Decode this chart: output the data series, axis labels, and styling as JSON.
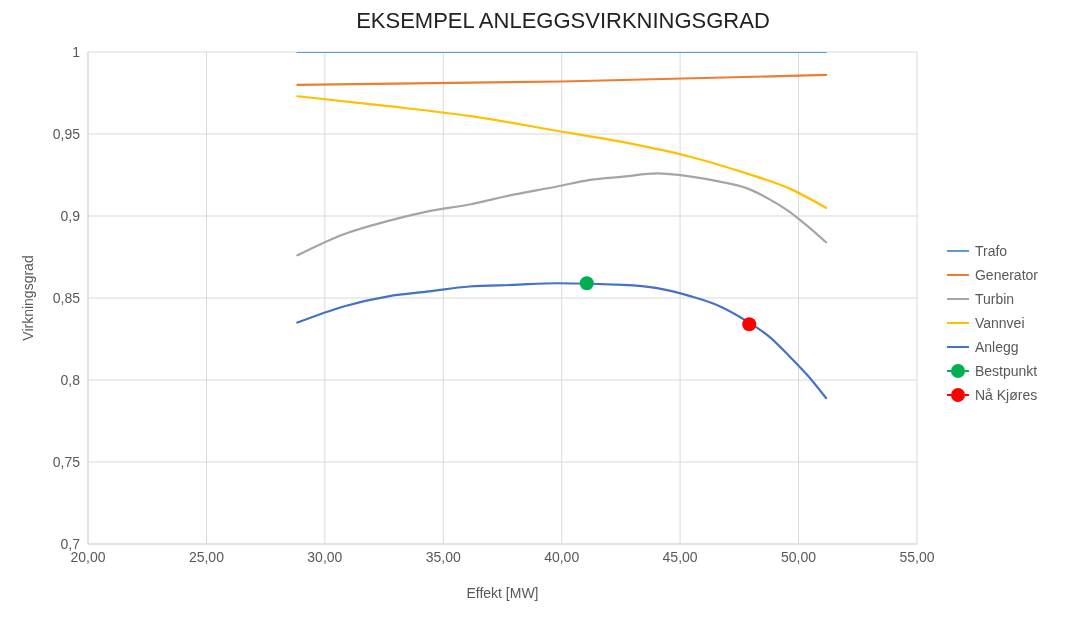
{
  "chart_data": {
    "type": "line",
    "title": "EKSEMPEL ANLEGGSVIRKNINGSGRAD",
    "xlabel": "Effekt [MW]",
    "ylabel": "Virkningsgrad",
    "xlim": [
      20,
      55
    ],
    "xticks": [
      {
        "value": 20,
        "label": "20,00"
      },
      {
        "value": 25,
        "label": "25,00"
      },
      {
        "value": 30,
        "label": "30,00"
      },
      {
        "value": 35,
        "label": "35,00"
      },
      {
        "value": 40,
        "label": "40,00"
      },
      {
        "value": 45,
        "label": "45,00"
      },
      {
        "value": 50,
        "label": "50,00"
      },
      {
        "value": 55,
        "label": "55,00"
      }
    ],
    "ylim": [
      0.7,
      1
    ],
    "yticks": [
      {
        "value": 0.7,
        "label": "0,7"
      },
      {
        "value": 0.75,
        "label": "0,75"
      },
      {
        "value": 0.8,
        "label": "0,8"
      },
      {
        "value": 0.85,
        "label": "0,85"
      },
      {
        "value": 0.9,
        "label": "0,9"
      },
      {
        "value": 0.95,
        "label": "0,95"
      },
      {
        "value": 1,
        "label": "1"
      }
    ],
    "grid": true,
    "legend": "right",
    "marker": "none",
    "series": [
      {
        "name": "Trafo",
        "color": "#5b9bd5",
        "x": [
          28.84,
          51.16
        ],
        "values": [
          1,
          1
        ]
      },
      {
        "name": "Generator",
        "color": "#ed7d31",
        "x": [
          28.84,
          40,
          51.16
        ],
        "values": [
          0.98,
          0.982,
          0.986
        ]
      },
      {
        "name": "Turbin",
        "color": "#a5a5a5",
        "x": [
          28.84,
          30.83,
          32.68,
          34.4,
          36.1,
          37.96,
          39.8,
          41.2,
          42.6,
          44.03,
          45.46,
          46.67,
          47.8,
          48.8,
          49.58,
          50.37,
          51.16
        ],
        "values": [
          0.876,
          0.889,
          0.897,
          0.903,
          0.907,
          0.913,
          0.918,
          0.922,
          0.924,
          0.926,
          0.924,
          0.921,
          0.917,
          0.91,
          0.903,
          0.894,
          0.884
        ]
      },
      {
        "name": "Vannvei",
        "color": "#ffc000",
        "x": [
          28.84,
          32.68,
          36.1,
          39.8,
          42.6,
          45.46,
          47.8,
          49.58,
          51.16
        ],
        "values": [
          0.973,
          0.967,
          0.961,
          0.952,
          0.945,
          0.936,
          0.926,
          0.917,
          0.905
        ]
      },
      {
        "name": "Anlegg",
        "color": "#4472c4",
        "x": [
          28.84,
          30.83,
          32.68,
          34.4,
          36.1,
          37.96,
          39.8,
          42.6,
          44.03,
          45.46,
          46.67,
          47.8,
          48.8,
          49.58,
          50.37,
          51.16
        ],
        "values": [
          0.835,
          0.845,
          0.851,
          0.854,
          0.857,
          0.858,
          0.859,
          0.858,
          0.856,
          0.851,
          0.845,
          0.836,
          0.826,
          0.815,
          0.803,
          0.789
        ]
      },
      {
        "name": "Bestpunkt",
        "type": "scatter",
        "marker": "circle",
        "color": "#00b050",
        "x": [
          41.06
        ],
        "values": [
          0.859
        ]
      },
      {
        "name": "Nå Kjøres",
        "type": "scatter",
        "marker": "circle",
        "color": "#ff0000",
        "x": [
          47.92
        ],
        "values": [
          0.834
        ]
      }
    ]
  }
}
